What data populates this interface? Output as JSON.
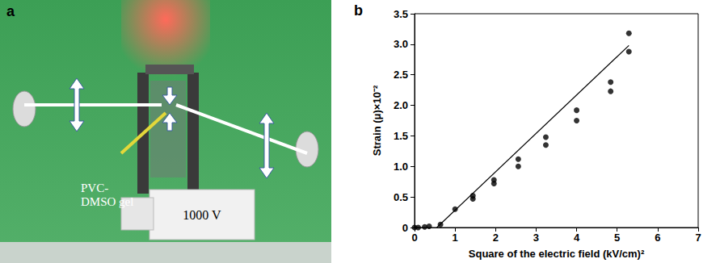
{
  "photo": {
    "letter": "a",
    "labels": [
      "PVC-DMSO gel",
      "1000 V"
    ]
  },
  "chart_data": {
    "type": "scatter",
    "letter": "b",
    "x_label": "Square of the electric field (kV/cm)²",
    "y_label": "Strain (μ)×10⁻²",
    "xlim": [
      0,
      7
    ],
    "xticks": [
      0,
      1,
      2,
      3,
      4,
      5,
      6,
      7
    ],
    "ylim": [
      0,
      3.5
    ],
    "yticks": [
      0,
      0.5,
      {
        "value": 1,
        "label": "1.0"
      },
      1.5,
      {
        "value": 2,
        "label": "2.0"
      },
      2.5,
      {
        "value": 3,
        "label": "3.0"
      },
      3.5
    ],
    "grid": false,
    "series": [
      {
        "type": "scatter",
        "color": "#000000",
        "marker": "circle",
        "x": [
          0,
          0.09,
          0.25,
          0.36,
          0.64,
          1.0,
          1.44,
          1.44,
          1.96,
          1.96,
          2.56,
          2.56,
          3.24,
          3.24,
          4.0,
          4.0,
          4.84,
          4.84,
          5.29,
          5.29
        ],
        "values": [
          0,
          0,
          0.01,
          0.02,
          0.05,
          0.3,
          0.47,
          0.52,
          0.72,
          0.78,
          1.0,
          1.12,
          1.35,
          1.48,
          1.75,
          1.92,
          2.23,
          2.38,
          2.88,
          3.18
        ]
      },
      {
        "type": "line",
        "color": "#000000",
        "line_style": "solid",
        "x": [
          0.55,
          5.29
        ],
        "values": [
          0,
          2.98
        ]
      }
    ]
  }
}
